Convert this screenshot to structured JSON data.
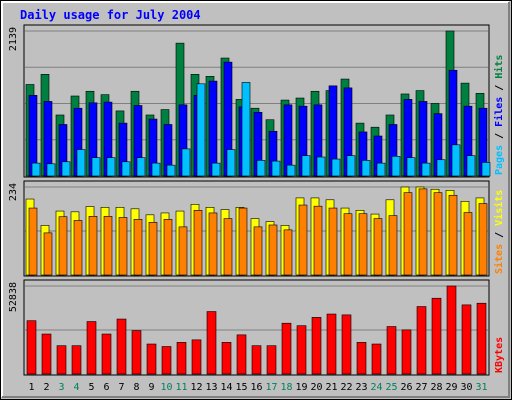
{
  "chart_data": {
    "title": "Daily usage for July 2004",
    "type": "bar",
    "categories": [
      "1",
      "2",
      "3",
      "4",
      "5",
      "6",
      "7",
      "8",
      "9",
      "10",
      "11",
      "12",
      "13",
      "14",
      "15",
      "16",
      "17",
      "18",
      "19",
      "20",
      "21",
      "22",
      "23",
      "24",
      "25",
      "26",
      "27",
      "28",
      "29",
      "30",
      "31"
    ],
    "weekend_days": [
      "3",
      "4",
      "10",
      "11",
      "17",
      "18",
      "24",
      "25",
      "31"
    ],
    "colors": {
      "background": "#c0c0c0",
      "title": "#0000ff",
      "hits": "#008040",
      "files": "#0000ff",
      "pages": "#00c0ff",
      "visits": "#ffff00",
      "sites": "#ff8000",
      "kbytes": "#ff0000",
      "weekday_label": "#000000",
      "weekend_label": "#00805c"
    },
    "panels": [
      {
        "id": "hits",
        "max_label": "2139",
        "ylim": [
          0,
          2139
        ],
        "axis_label_parts": [
          {
            "text": "Pages",
            "color": "#00c0ff"
          },
          {
            "text": " / ",
            "color": "#000000"
          },
          {
            "text": "Files",
            "color": "#0000ff"
          },
          {
            "text": " / ",
            "color": "#000000"
          },
          {
            "text": "Hits",
            "color": "#008040"
          }
        ],
        "series": [
          {
            "name": "Hits",
            "color": "#008040",
            "values": [
              1350,
              1500,
              900,
              1180,
              1250,
              1200,
              960,
              1250,
              900,
              980,
              1960,
              1500,
              1470,
              1740,
              1130,
              1000,
              830,
              1120,
              1150,
              1250,
              1260,
              1430,
              780,
              720,
              900,
              1210,
              1260,
              1070,
              2140,
              1370,
              1220
            ]
          },
          {
            "name": "Files",
            "color": "#0000ff",
            "values": [
              1190,
              1100,
              760,
              1000,
              1080,
              1090,
              780,
              1040,
              840,
              760,
              1050,
              1190,
              1400,
              1680,
              1020,
              940,
              660,
              1050,
              1030,
              1050,
              1330,
              1300,
              650,
              590,
              760,
              1130,
              1100,
              920,
              1560,
              1030,
              1000
            ]
          },
          {
            "name": "Pages",
            "color": "#00c0ff",
            "values": [
              190,
              180,
              210,
              390,
              270,
              270,
              210,
              270,
              190,
              160,
              400,
              1360,
              190,
              390,
              1380,
              230,
              220,
              160,
              300,
              280,
              250,
              300,
              230,
              190,
              290,
              270,
              190,
              240,
              460,
              300,
              200
            ]
          }
        ]
      },
      {
        "id": "visits",
        "max_label": "234",
        "ylim": [
          0,
          234
        ],
        "axis_label_parts": [
          {
            "text": "Sites",
            "color": "#ff8000"
          },
          {
            "text": " / ",
            "color": "#000000"
          },
          {
            "text": "Visits",
            "color": "#ffff00"
          }
        ],
        "series": [
          {
            "name": "Visits",
            "color": "#ffff00",
            "values": [
              202,
              132,
              170,
              168,
              182,
              180,
              180,
              176,
              160,
              165,
              170,
              188,
              180,
              174,
              180,
              150,
              142,
              132,
              205,
              205,
              200,
              178,
              172,
              162,
              200,
              240,
              240,
              228,
              225,
              196,
              205
            ]
          },
          {
            "name": "Sites",
            "color": "#ff8000",
            "values": [
              178,
              112,
              155,
              145,
              156,
              156,
              153,
              148,
              140,
              148,
              128,
              172,
              165,
              150,
              178,
              128,
              133,
              120,
              186,
              183,
              178,
              163,
              163,
              150,
              158,
              219,
              229,
              219,
              212,
              166,
              190
            ]
          }
        ]
      },
      {
        "id": "kbytes",
        "max_label": "52838",
        "ylim": [
          0,
          52838
        ],
        "axis_label_parts": [
          {
            "text": "KBytes",
            "color": "#ff0000"
          }
        ],
        "series": [
          {
            "name": "KBytes",
            "color": "#ff0000",
            "values": [
              32000,
              24000,
              17000,
              17000,
              31500,
              24000,
              33000,
              26000,
              18000,
              16500,
              19000,
              20500,
              37500,
              19000,
              23500,
              17000,
              17000,
              30500,
              29000,
              34000,
              36000,
              35500,
              19000,
              18000,
              28500,
              26500,
              40500,
              45500,
              54500,
              41500,
              42500
            ]
          }
        ]
      }
    ]
  }
}
